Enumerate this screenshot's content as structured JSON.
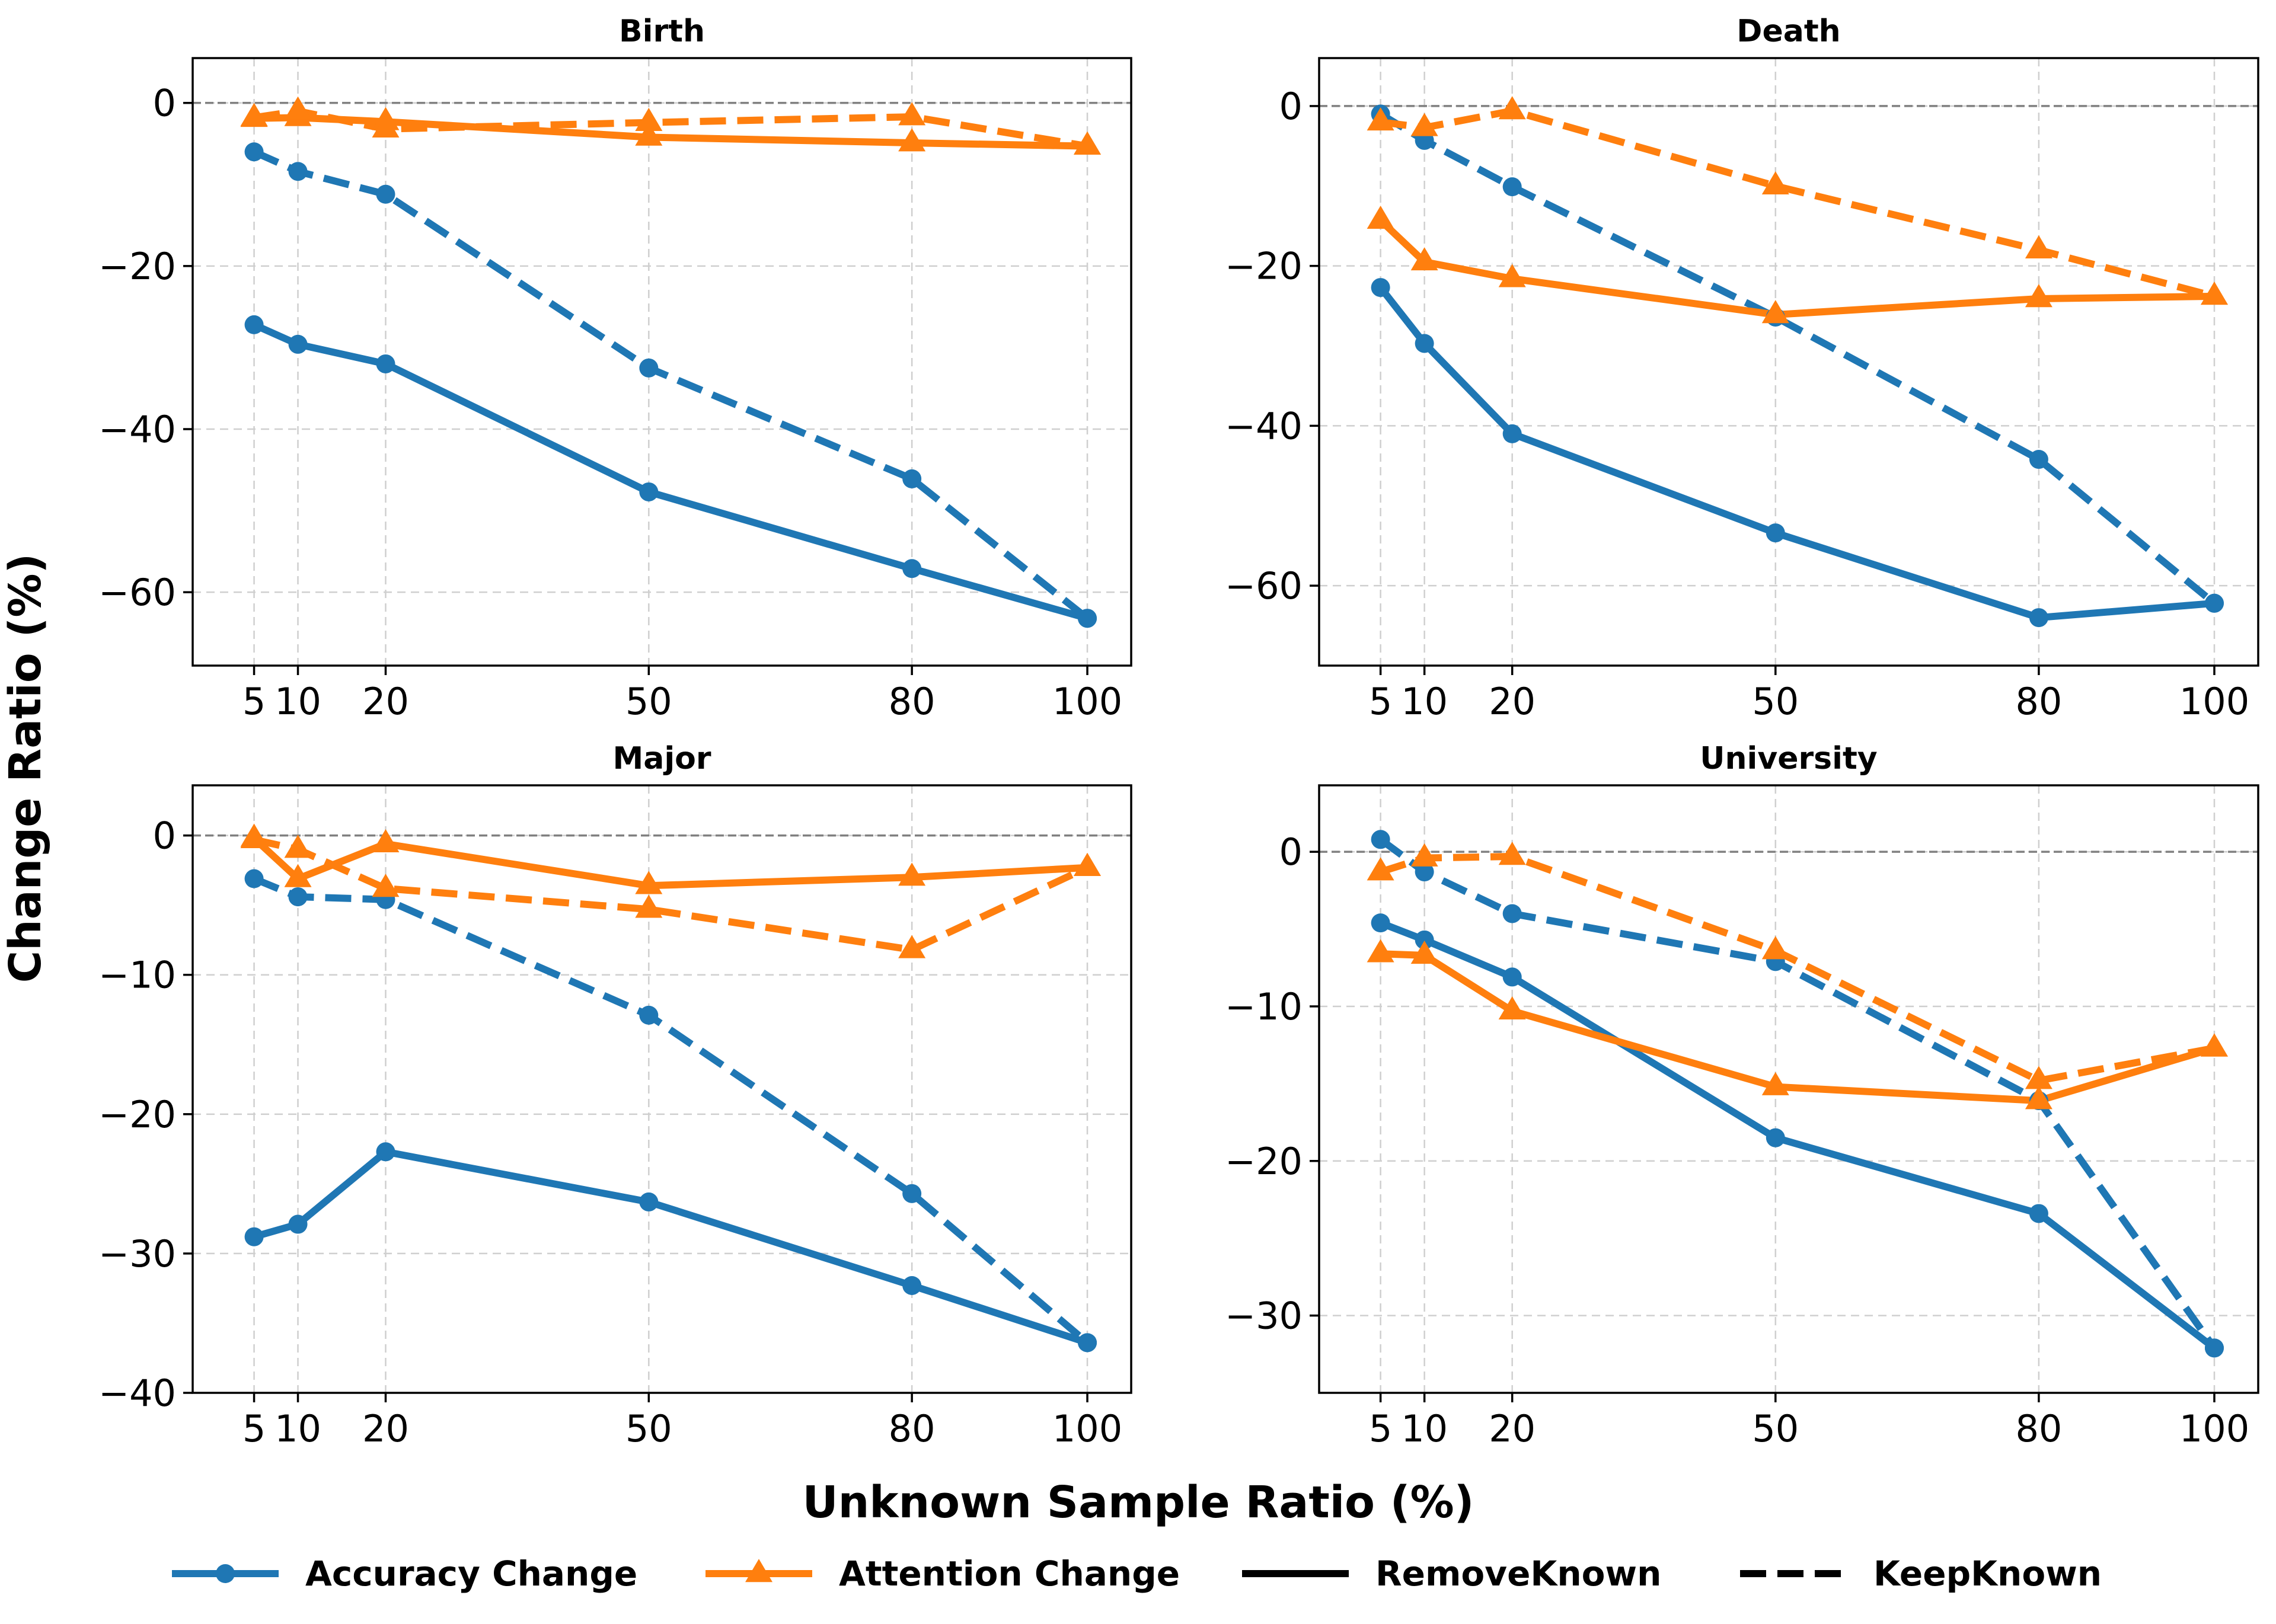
{
  "chart_data": {
    "type": "line",
    "xlabel": "Unknown Sample Ratio (%)",
    "ylabel": "Change Ratio (%)",
    "legend": {
      "position": "bottom",
      "entries": [
        {
          "label": "Accuracy Change",
          "color": "#1f77b4",
          "marker": "circle",
          "style": "solid"
        },
        {
          "label": "Attention Change",
          "color": "#ff7f0e",
          "marker": "triangle",
          "style": "solid"
        },
        {
          "label": "RemoveKnown",
          "color": "#000000",
          "marker": "none",
          "style": "solid"
        },
        {
          "label": "KeepKnown",
          "color": "#000000",
          "marker": "none",
          "style": "dashed"
        }
      ]
    },
    "panels": [
      {
        "title": "Birth",
        "x": [
          5,
          10,
          20,
          50,
          80,
          100
        ],
        "xticks": [
          5,
          10,
          20,
          50,
          80,
          100
        ],
        "xlim": [
          -2,
          105
        ],
        "ylim": [
          -69,
          5.5
        ],
        "yticks": [
          0,
          -20,
          -40,
          -60
        ],
        "yticklabels": [
          "0",
          "−20",
          "−40",
          "−60"
        ],
        "series": [
          {
            "name": "Accuracy Change",
            "variant": "RemoveKnown",
            "color": "#1f77b4",
            "marker": "circle",
            "dashed": false,
            "values": [
              -27.2,
              -29.6,
              -32.0,
              -47.7,
              -57.1,
              -63.2
            ]
          },
          {
            "name": "Accuracy Change",
            "variant": "KeepKnown",
            "color": "#1f77b4",
            "marker": "circle",
            "dashed": true,
            "values": [
              -6.0,
              -8.4,
              -11.2,
              -32.5,
              -46.1,
              -63.2
            ]
          },
          {
            "name": "Attention Change",
            "variant": "RemoveKnown",
            "color": "#ff7f0e",
            "marker": "triangle",
            "dashed": false,
            "values": [
              -1.9,
              -1.8,
              -2.3,
              -4.2,
              -4.9,
              -5.3
            ]
          },
          {
            "name": "Attention Change",
            "variant": "KeepKnown",
            "color": "#ff7f0e",
            "marker": "triangle",
            "dashed": true,
            "values": [
              -1.8,
              -1.0,
              -3.2,
              -2.4,
              -1.7,
              -5.3
            ]
          }
        ]
      },
      {
        "title": "Death",
        "x": [
          5,
          10,
          20,
          50,
          80,
          100
        ],
        "xticks": [
          5,
          10,
          20,
          50,
          80,
          100
        ],
        "xlim": [
          -2,
          105
        ],
        "ylim": [
          -70,
          6
        ],
        "yticks": [
          0,
          -20,
          -40,
          -60
        ],
        "yticklabels": [
          "0",
          "−20",
          "−40",
          "−60"
        ],
        "series": [
          {
            "name": "Accuracy Change",
            "variant": "RemoveKnown",
            "color": "#1f77b4",
            "marker": "circle",
            "dashed": false,
            "values": [
              -22.7,
              -29.7,
              -41.0,
              -53.4,
              -64.0,
              -62.2
            ]
          },
          {
            "name": "Accuracy Change",
            "variant": "KeepKnown",
            "color": "#1f77b4",
            "marker": "circle",
            "dashed": true,
            "values": [
              -1.0,
              -4.3,
              -10.1,
              -26.4,
              -44.2,
              -62.2
            ]
          },
          {
            "name": "Attention Change",
            "variant": "RemoveKnown",
            "color": "#ff7f0e",
            "marker": "triangle",
            "dashed": false,
            "values": [
              -14.3,
              -19.5,
              -21.6,
              -26.1,
              -24.1,
              -23.8
            ]
          },
          {
            "name": "Attention Change",
            "variant": "KeepKnown",
            "color": "#ff7f0e",
            "marker": "triangle",
            "dashed": true,
            "values": [
              -2.0,
              -2.7,
              -0.6,
              -10.0,
              -18.0,
              -23.8
            ]
          }
        ]
      },
      {
        "title": "Major",
        "x": [
          5,
          10,
          20,
          50,
          80,
          100
        ],
        "xticks": [
          5,
          10,
          20,
          50,
          80,
          100
        ],
        "xlim": [
          -2,
          105
        ],
        "ylim": [
          -40,
          3.6
        ],
        "yticks": [
          0,
          -10,
          -20,
          -30,
          -40
        ],
        "yticklabels": [
          "0",
          "−10",
          "−20",
          "−30",
          "−40"
        ],
        "series": [
          {
            "name": "Accuracy Change",
            "variant": "RemoveKnown",
            "color": "#1f77b4",
            "marker": "circle",
            "dashed": false,
            "values": [
              -28.8,
              -27.9,
              -22.7,
              -26.3,
              -32.3,
              -36.4
            ]
          },
          {
            "name": "Accuracy Change",
            "variant": "KeepKnown",
            "color": "#1f77b4",
            "marker": "circle",
            "dashed": true,
            "values": [
              -3.1,
              -4.4,
              -4.6,
              -12.9,
              -25.7,
              -36.4
            ]
          },
          {
            "name": "Attention Change",
            "variant": "RemoveKnown",
            "color": "#ff7f0e",
            "marker": "triangle",
            "dashed": false,
            "values": [
              -0.2,
              -3.1,
              -0.6,
              -3.6,
              -3.0,
              -2.3
            ]
          },
          {
            "name": "Attention Change",
            "variant": "KeepKnown",
            "color": "#ff7f0e",
            "marker": "triangle",
            "dashed": true,
            "values": [
              -0.3,
              -1.0,
              -3.8,
              -5.3,
              -8.2,
              -2.3
            ]
          }
        ]
      },
      {
        "title": "University",
        "x": [
          5,
          10,
          20,
          50,
          80,
          100
        ],
        "xticks": [
          5,
          10,
          20,
          50,
          80,
          100
        ],
        "xlim": [
          -2,
          105
        ],
        "ylim": [
          -35,
          4.3
        ],
        "yticks": [
          0,
          -10,
          -20,
          -30
        ],
        "yticklabels": [
          "0",
          "−10",
          "−20",
          "−30"
        ],
        "series": [
          {
            "name": "Accuracy Change",
            "variant": "RemoveKnown",
            "color": "#1f77b4",
            "marker": "circle",
            "dashed": false,
            "values": [
              -4.6,
              -5.7,
              -8.1,
              -18.5,
              -23.4,
              -32.1
            ]
          },
          {
            "name": "Accuracy Change",
            "variant": "KeepKnown",
            "color": "#1f77b4",
            "marker": "circle",
            "dashed": true,
            "values": [
              0.8,
              -1.3,
              -4.0,
              -7.1,
              -16.1,
              -32.1
            ]
          },
          {
            "name": "Attention Change",
            "variant": "RemoveKnown",
            "color": "#ff7f0e",
            "marker": "triangle",
            "dashed": false,
            "values": [
              -6.6,
              -6.7,
              -10.3,
              -15.2,
              -16.1,
              -12.7
            ]
          },
          {
            "name": "Attention Change",
            "variant": "KeepKnown",
            "color": "#ff7f0e",
            "marker": "triangle",
            "dashed": true,
            "values": [
              -1.3,
              -0.4,
              -0.3,
              -6.4,
              -14.8,
              -12.7
            ]
          }
        ]
      }
    ]
  }
}
